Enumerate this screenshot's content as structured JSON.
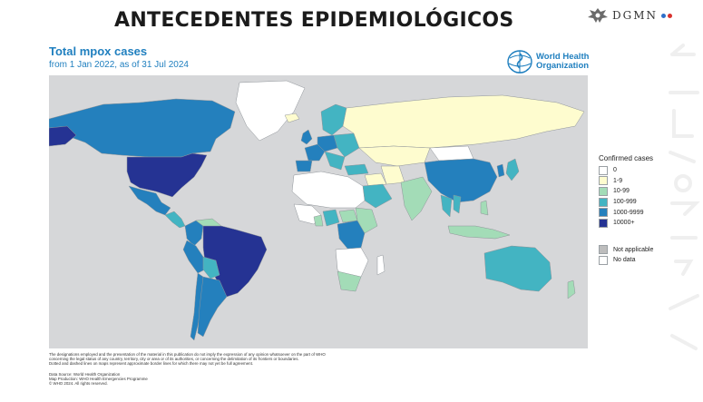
{
  "slide": {
    "title": "ANTECEDENTES EPIDEMIOLÓGICOS"
  },
  "brand": {
    "name": "DGMN",
    "dot_colors": [
      "#2e6fc9",
      "#d9322e"
    ]
  },
  "map": {
    "title": "Total mpox cases",
    "subtitle": "from 1 Jan 2022, as of 31 Jul 2024",
    "publisher_logo_text_line1": "World Health",
    "publisher_logo_text_line2": "Organization",
    "ocean_color": "#d6d7d9"
  },
  "legend": {
    "title": "Confirmed cases",
    "classes": [
      {
        "label": "0",
        "color": "#ffffff"
      },
      {
        "label": "1-9",
        "color": "#fefccf"
      },
      {
        "label": "10-99",
        "color": "#a3dcb7"
      },
      {
        "label": "100-999",
        "color": "#43b4c2"
      },
      {
        "label": "1000-9999",
        "color": "#2480bd"
      },
      {
        "label": "10000+",
        "color": "#253393"
      }
    ],
    "extra": [
      {
        "label": "Not applicable",
        "color": "#bdbdbd"
      },
      {
        "label": "No data",
        "color": "#ffffff"
      }
    ]
  },
  "regions": [
    {
      "name": "Canada",
      "class": "1000-9999"
    },
    {
      "name": "United States of America",
      "class": "10000+"
    },
    {
      "name": "Mexico",
      "class": "1000-9999"
    },
    {
      "name": "Central America",
      "class": "100-999"
    },
    {
      "name": "Colombia",
      "class": "1000-9999"
    },
    {
      "name": "Venezuela",
      "class": "10-99"
    },
    {
      "name": "Peru",
      "class": "1000-9999"
    },
    {
      "name": "Brazil",
      "class": "10000+"
    },
    {
      "name": "Bolivia",
      "class": "100-999"
    },
    {
      "name": "Chile",
      "class": "1000-9999"
    },
    {
      "name": "Argentina",
      "class": "1000-9999"
    },
    {
      "name": "Greenland",
      "class": "0"
    },
    {
      "name": "Iceland",
      "class": "1-9"
    },
    {
      "name": "United Kingdom",
      "class": "1000-9999"
    },
    {
      "name": "Spain",
      "class": "1000-9999"
    },
    {
      "name": "France",
      "class": "1000-9999"
    },
    {
      "name": "Germany",
      "class": "1000-9999"
    },
    {
      "name": "Scandinavia",
      "class": "100-999"
    },
    {
      "name": "Russian Federation",
      "class": "1-9"
    },
    {
      "name": "Central Asia",
      "class": "1-9"
    },
    {
      "name": "Türkiye",
      "class": "100-999"
    },
    {
      "name": "Saudi Arabia",
      "class": "100-999"
    },
    {
      "name": "India",
      "class": "10-99"
    },
    {
      "name": "China",
      "class": "1000-9999"
    },
    {
      "name": "Mongolia",
      "class": "0"
    },
    {
      "name": "Japan",
      "class": "100-999"
    },
    {
      "name": "Thailand",
      "class": "100-999"
    },
    {
      "name": "Viet Nam",
      "class": "100-999"
    },
    {
      "name": "Philippines",
      "class": "10-99"
    },
    {
      "name": "Indonesia",
      "class": "10-99"
    },
    {
      "name": "North Africa",
      "class": "0"
    },
    {
      "name": "Nigeria",
      "class": "100-999"
    },
    {
      "name": "Ghana",
      "class": "10-99"
    },
    {
      "name": "Democratic Republic of the Congo",
      "class": "1000-9999"
    },
    {
      "name": "Central African Republic",
      "class": "10-99"
    },
    {
      "name": "Southern Africa",
      "class": "0"
    },
    {
      "name": "South Africa",
      "class": "10-99"
    },
    {
      "name": "Madagascar",
      "class": "0"
    },
    {
      "name": "Australia",
      "class": "100-999"
    },
    {
      "name": "New Zealand",
      "class": "10-99"
    }
  ],
  "disclaimer": [
    "The designations employed and the presentation of the material in this publication do not imply the expression of any opinion whatsoever on the part of WHO",
    "concerning the legal status of any country, territory, city or area or of its authorities, or concerning the delimitation of its frontiers or boundaries.",
    "Dotted and dashed lines on maps represent approximate border lines for which there may not yet be full agreement."
  ],
  "source": [
    "Data Source: World Health Organization",
    "Map Production: WHO Health Emergencies Programme",
    "© WHO 2024. All rights reserved."
  ]
}
